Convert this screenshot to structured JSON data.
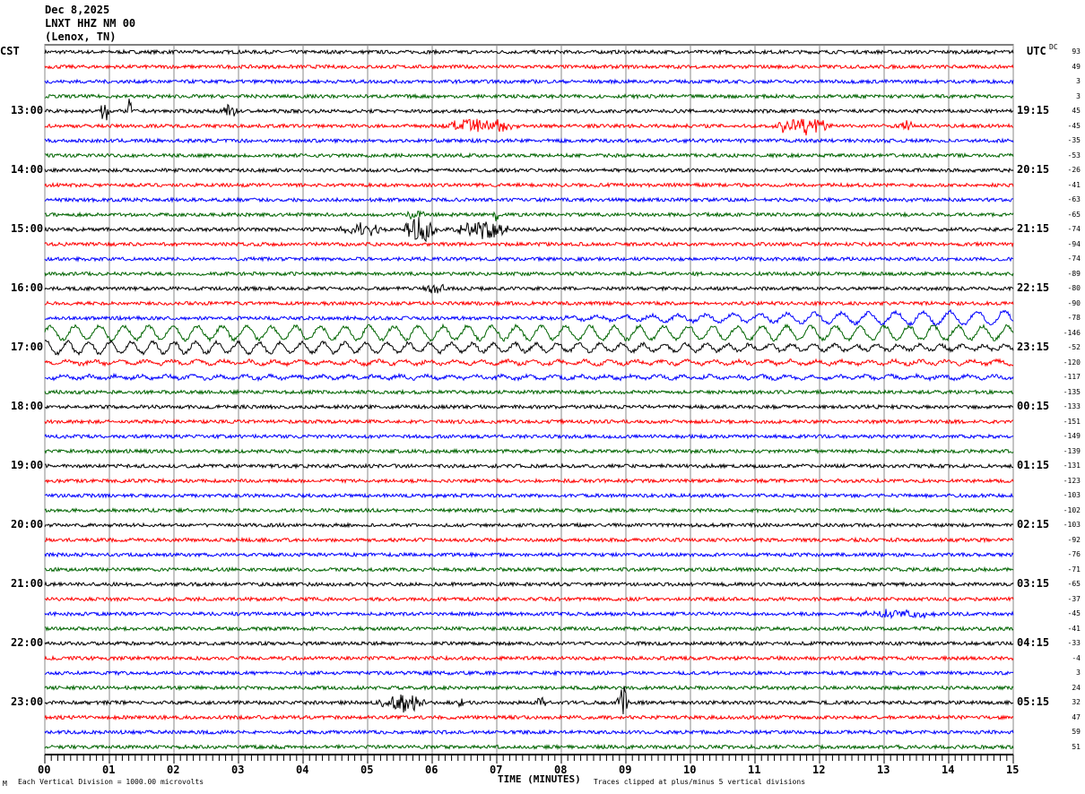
{
  "header": {
    "date": "Dec 8,2025",
    "station": "LNXT HHZ NM 00",
    "location": "(Lenox, TN)"
  },
  "left_tz": "CST",
  "right_tz": "UTC",
  "dc_label": "DC",
  "footer": {
    "scale": "Each Vertical Division = 1000.00 microvolts",
    "xlabel": "TIME (MINUTES)",
    "clip": "Traces clipped at plus/minus 5 vertical divisions",
    "mark": "M"
  },
  "chart_data": {
    "type": "line",
    "title": "LNXT HHZ NM 00 helicorder, Dec 8,2025",
    "xlabel": "TIME (MINUTES)",
    "xlim": [
      0,
      15
    ],
    "x_ticks": [
      "00",
      "01",
      "02",
      "03",
      "04",
      "05",
      "06",
      "07",
      "08",
      "09",
      "10",
      "11",
      "12",
      "13",
      "14",
      "15"
    ],
    "trace_colors": [
      "#000000",
      "#ff0000",
      "#0000ff",
      "#006400"
    ],
    "left_labels": [
      {
        "trace": 4,
        "text": "13:00"
      },
      {
        "trace": 8,
        "text": "14:00"
      },
      {
        "trace": 12,
        "text": "15:00"
      },
      {
        "trace": 16,
        "text": "16:00"
      },
      {
        "trace": 20,
        "text": "17:00"
      },
      {
        "trace": 24,
        "text": "18:00"
      },
      {
        "trace": 28,
        "text": "19:00"
      },
      {
        "trace": 32,
        "text": "20:00"
      },
      {
        "trace": 36,
        "text": "21:00"
      },
      {
        "trace": 40,
        "text": "22:00"
      },
      {
        "trace": 44,
        "text": "23:00"
      }
    ],
    "right_labels": [
      {
        "trace": 4,
        "text": "19:15"
      },
      {
        "trace": 8,
        "text": "20:15"
      },
      {
        "trace": 12,
        "text": "21:15"
      },
      {
        "trace": 16,
        "text": "22:15"
      },
      {
        "trace": 20,
        "text": "23:15"
      },
      {
        "trace": 24,
        "text": "00:15"
      },
      {
        "trace": 28,
        "text": "01:15"
      },
      {
        "trace": 32,
        "text": "02:15"
      },
      {
        "trace": 36,
        "text": "03:15"
      },
      {
        "trace": 40,
        "text": "04:15"
      },
      {
        "trace": 44,
        "text": "05:15"
      }
    ],
    "dc_offsets": [
      "93",
      "49",
      "3",
      "3",
      "45",
      "-45",
      "-35",
      "-53",
      "-26",
      "-41",
      "-63",
      "-65",
      "-74",
      "-94",
      "-74",
      "-89",
      "-80",
      "-90",
      "-78",
      "-146",
      "-52",
      "-120",
      "-117",
      "-135",
      "-133",
      "-151",
      "-149",
      "-139",
      "-131",
      "-123",
      "-103",
      "-102",
      "-103",
      "-92",
      "-76",
      "-71",
      "-65",
      "-37",
      "-45",
      "-41",
      "-33",
      "-4",
      "3",
      "24",
      "32",
      "47",
      "59",
      "51"
    ],
    "events": [
      {
        "trace": 4,
        "start": 0.85,
        "end": 1.0,
        "amp": 0.8
      },
      {
        "trace": 4,
        "start": 1.28,
        "end": 1.35,
        "amp": 0.9
      },
      {
        "trace": 4,
        "start": 2.75,
        "end": 3.0,
        "amp": 0.5
      },
      {
        "trace": 5,
        "start": 6.1,
        "end": 7.4,
        "amp": 0.5
      },
      {
        "trace": 5,
        "start": 11.2,
        "end": 12.3,
        "amp": 0.6
      },
      {
        "trace": 5,
        "start": 13.2,
        "end": 13.5,
        "amp": 0.3
      },
      {
        "trace": 11,
        "start": 5.6,
        "end": 5.9,
        "amp": 0.4
      },
      {
        "trace": 11,
        "start": 6.95,
        "end": 7.05,
        "amp": 0.4
      },
      {
        "trace": 12,
        "start": 4.5,
        "end": 5.3,
        "amp": 0.4
      },
      {
        "trace": 12,
        "start": 5.5,
        "end": 6.1,
        "amp": 0.9
      },
      {
        "trace": 12,
        "start": 6.3,
        "end": 7.3,
        "amp": 0.6
      },
      {
        "trace": 16,
        "start": 5.8,
        "end": 6.3,
        "amp": 0.3
      },
      {
        "trace": 38,
        "start": 12.5,
        "end": 14.0,
        "amp": 0.25
      },
      {
        "trace": 44,
        "start": 5.1,
        "end": 6.0,
        "amp": 0.6
      },
      {
        "trace": 44,
        "start": 6.4,
        "end": 6.5,
        "amp": 0.5
      },
      {
        "trace": 44,
        "start": 7.6,
        "end": 7.8,
        "amp": 0.35
      },
      {
        "trace": 44,
        "start": 8.85,
        "end": 9.05,
        "amp": 1.2
      }
    ],
    "waves": [
      {
        "trace": 18,
        "start": 8,
        "end": 15,
        "amp_start": 0.1,
        "amp_end": 0.5,
        "period": 0.42
      },
      {
        "trace": 19,
        "start": 0,
        "end": 15,
        "amp_start": 0.45,
        "amp_end": 0.45,
        "period": 0.38
      },
      {
        "trace": 20,
        "start": 0,
        "end": 15,
        "amp_start": 0.4,
        "amp_end": 0.15,
        "period": 0.33
      },
      {
        "trace": 21,
        "start": 0,
        "end": 15,
        "amp_start": 0.12,
        "amp_end": 0.12,
        "period": 0.4
      },
      {
        "trace": 22,
        "start": 0,
        "end": 15,
        "amp_start": 0.1,
        "amp_end": 0.1,
        "period": 0.4
      }
    ],
    "noise_amp": 0.12
  }
}
